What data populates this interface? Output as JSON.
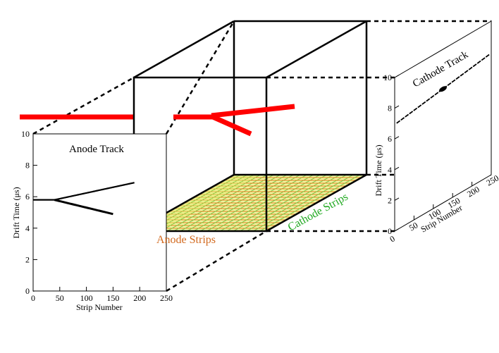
{
  "anode_panel": {
    "title": "Anode Track",
    "xlabel": "Strip Number",
    "ylabel": "Drift Time (μs)",
    "xticks": [
      "0",
      "50",
      "100",
      "150",
      "200",
      "250"
    ],
    "yticks": [
      "0",
      "2",
      "4",
      "6",
      "8",
      "10"
    ]
  },
  "cathode_panel": {
    "title": "Cathode Track",
    "xlabel": "Strip Number",
    "ylabel": "Drift Time (μs)",
    "xticks": [
      "0",
      "50",
      "100",
      "150",
      "200",
      "250"
    ],
    "yticks": [
      "0",
      "2",
      "4",
      "6",
      "8",
      "10"
    ]
  },
  "plane_labels": {
    "anode": "Anode Strips",
    "cathode": "Cathode Strips"
  },
  "colors": {
    "track": "#ff0000",
    "anode_label": "#d2691e",
    "cathode_label": "#22aa22",
    "grid_yellow": "#d4e84a",
    "grid_red": "#e67e22",
    "grid_green": "#7cc242"
  }
}
